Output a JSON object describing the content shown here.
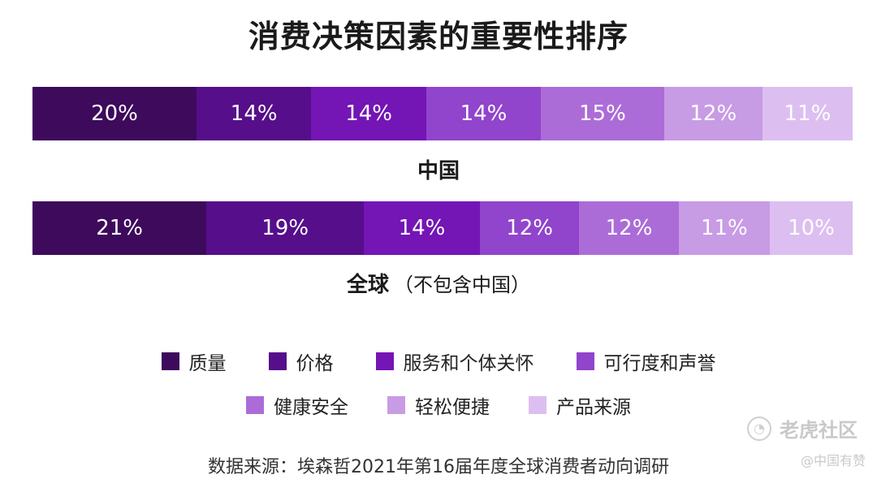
{
  "chart_data": {
    "type": "bar",
    "orientation": "horizontal-stacked",
    "title": "消费决策因素的重要性排序",
    "categories": [
      "中国",
      "全球"
    ],
    "category_notes": [
      "",
      "（不包含中国）"
    ],
    "series": [
      {
        "name": "质量",
        "color": "#3d0a5c",
        "values": [
          20,
          21
        ]
      },
      {
        "name": "价格",
        "color": "#560e8a",
        "values": [
          14,
          19
        ]
      },
      {
        "name": "服务和个体关怀",
        "color": "#7415b5",
        "values": [
          14,
          14
        ]
      },
      {
        "name": "可行度和声誉",
        "color": "#9144cc",
        "values": [
          14,
          12
        ]
      },
      {
        "name": "健康安全",
        "color": "#ac6cd8",
        "values": [
          15,
          12
        ]
      },
      {
        "name": "轻松便捷",
        "color": "#c89be5",
        "values": [
          12,
          11
        ]
      },
      {
        "name": "产品来源",
        "color": "#dcbff0",
        "values": [
          11,
          10
        ]
      }
    ],
    "value_suffix": "%",
    "legend_position": "bottom",
    "source": "数据来源：埃森哲2021年第16届年度全球消费者动向调研"
  },
  "watermark": {
    "text": "老虎社区",
    "icon": "tiger-community-logo-icon",
    "sub": "@中国有赞"
  }
}
